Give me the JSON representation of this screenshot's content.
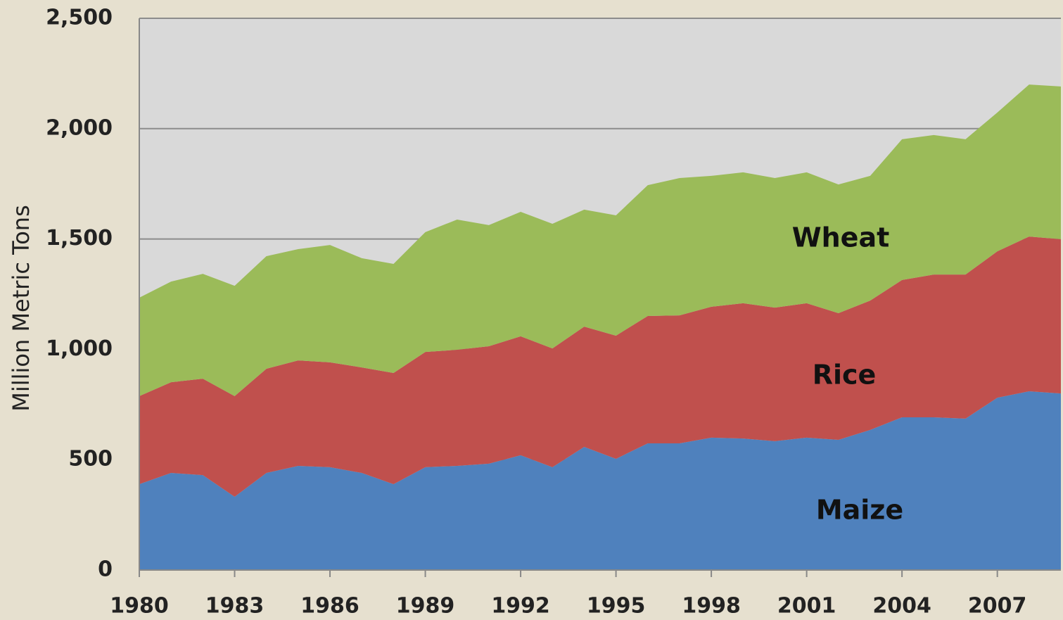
{
  "chart_data": {
    "type": "stacked-area",
    "y_label": "Million Metric Tons",
    "x": [
      1980,
      1981,
      1982,
      1983,
      1984,
      1985,
      1986,
      1987,
      1988,
      1989,
      1990,
      1991,
      1992,
      1993,
      1994,
      1995,
      1996,
      1997,
      1998,
      1999,
      2000,
      2001,
      2002,
      2003,
      2004,
      2005,
      2006,
      2007,
      2008,
      2009
    ],
    "series": [
      {
        "name": "Maize",
        "color": "#4f81bd",
        "values": [
          389,
          440,
          430,
          332,
          440,
          472,
          466,
          440,
          389,
          466,
          472,
          482,
          520,
          466,
          558,
          504,
          574,
          574,
          600,
          596,
          584,
          600,
          590,
          635,
          692,
          692,
          686,
          781,
          810,
          800
        ]
      },
      {
        "name": "Rice",
        "color": "#c0504d",
        "values": [
          399,
          411,
          437,
          456,
          472,
          478,
          475,
          478,
          504,
          522,
          526,
          532,
          539,
          538,
          545,
          558,
          577,
          580,
          593,
          613,
          605,
          609,
          574,
          586,
          622,
          647,
          653,
          663,
          701,
          699
        ]
      },
      {
        "name": "Wheat",
        "color": "#9bbb59",
        "values": [
          446,
          456,
          475,
          500,
          510,
          504,
          532,
          495,
          494,
          543,
          590,
          549,
          564,
          565,
          530,
          545,
          593,
          622,
          593,
          593,
          587,
          593,
          583,
          565,
          638,
          632,
          613,
          629,
          689,
          692
        ]
      }
    ],
    "xlim": [
      1980,
      2009
    ],
    "xticks": [
      1980,
      1983,
      1986,
      1989,
      1992,
      1995,
      1998,
      2001,
      2004,
      2007
    ],
    "ylim": [
      0,
      2500
    ],
    "yticks": [
      0,
      500,
      {
        "value": 1000,
        "label": "1,000"
      },
      {
        "value": 1500,
        "label": "1,500"
      },
      {
        "value": 2000,
        "label": "2,000"
      },
      {
        "value": 2500,
        "label": "2,500"
      }
    ],
    "grid": true
  }
}
